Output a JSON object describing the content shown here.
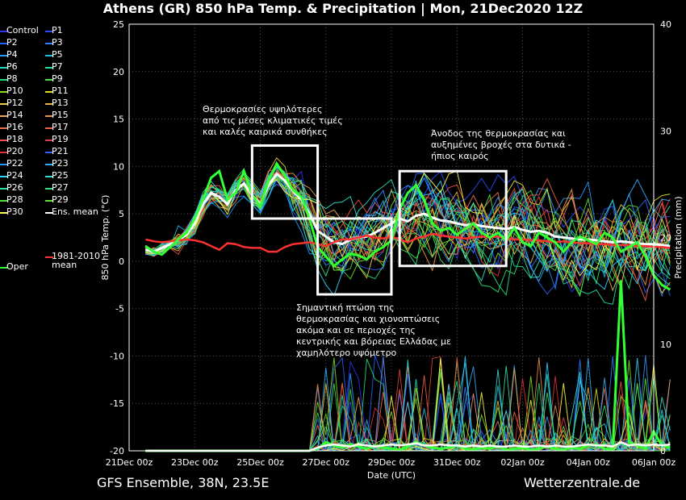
{
  "chart_data": {
    "type": "line",
    "title": "Athens  (GR)  850 hPa Temp. & Precipitation | Mon, 21Dec2020 12Z",
    "xlabel": "Date (UTC)",
    "ylabel": "850 hPa Temp. (°C)",
    "y2label": "Precipitation (mm)",
    "ylim": [
      -20,
      25
    ],
    "y2lim": [
      0,
      40
    ],
    "yticks": [
      "25",
      "20",
      "15",
      "10",
      "5",
      "0",
      "-5",
      "-10",
      "-15",
      "-20"
    ],
    "y2ticks": [
      "40",
      "30",
      "20",
      "10",
      "0"
    ],
    "x_tick_labels": [
      "21Dec 00z",
      "23Dec 00z",
      "25Dec 00z",
      "27Dec 00z",
      "29Dec 00z",
      "31Dec 00z",
      "02Jan 00z",
      "04Jan 00z",
      "06Jan 00z"
    ],
    "x_hours": [
      0,
      6,
      12,
      18,
      24,
      30,
      36,
      42,
      48,
      54,
      60,
      66,
      72,
      78,
      84,
      90,
      96,
      102,
      108,
      114,
      120,
      126,
      132,
      138,
      144,
      150,
      156,
      162,
      168,
      174,
      180,
      186,
      192,
      198,
      204,
      210,
      216,
      222,
      228,
      234,
      240,
      246,
      252,
      258,
      264,
      270,
      276,
      282,
      288,
      294,
      300,
      306,
      312,
      318,
      324,
      330,
      336,
      342,
      348,
      354,
      360,
      366,
      372,
      378,
      384
    ],
    "x_hours_start": 12,
    "series": [
      {
        "name": "Ens. mean",
        "color": "#ffffff",
        "width": 3,
        "values": [
          1.2,
          1.0,
          1.4,
          1.8,
          2.2,
          2.8,
          4.0,
          6.0,
          7.2,
          6.8,
          6.0,
          7.5,
          8.2,
          7.0,
          6.0,
          8.0,
          9.2,
          8.5,
          7.4,
          6.5,
          5.0,
          3.2,
          2.6,
          2.0,
          1.8,
          2.3,
          2.5,
          2.6,
          3.0,
          3.5,
          4.0,
          4.5,
          4.2,
          4.8,
          5.0,
          4.6,
          4.3,
          4.2,
          4.0,
          3.8,
          3.9,
          3.7,
          3.6,
          3.5,
          3.4,
          3.6,
          3.3,
          3.1,
          3.2,
          3.0,
          2.6,
          2.5,
          2.4,
          2.3,
          2.3,
          2.2,
          2.1,
          2.0,
          2.1,
          2.0,
          1.9,
          1.8,
          1.8,
          1.7,
          1.6
        ]
      },
      {
        "name": "1981-2010 mean",
        "color": "#ff3030",
        "width": 2.5,
        "values": [
          2.3,
          2.1,
          2.0,
          2.1,
          2.2,
          2.3,
          2.2,
          2.0,
          1.6,
          1.2,
          1.9,
          1.8,
          1.5,
          1.4,
          1.4,
          1.0,
          1.0,
          1.5,
          1.8,
          1.9,
          2.0,
          1.8,
          1.6,
          2.0,
          2.3,
          2.3,
          2.5,
          2.7,
          2.5,
          2.4,
          2.6,
          2.3,
          2.0,
          2.4,
          2.6,
          2.9,
          2.7,
          2.6,
          2.5,
          2.4,
          2.5,
          2.6,
          2.5,
          2.6,
          2.4,
          2.3,
          2.3,
          2.2,
          2.2,
          2.1,
          2.0,
          2.1,
          2.0,
          1.9,
          1.9,
          1.8,
          1.8,
          1.7,
          1.7,
          1.7,
          1.6,
          1.6,
          1.5,
          1.5,
          1.4
        ]
      },
      {
        "name": "Oper",
        "color": "#33ff33",
        "width": 3,
        "values": [
          1.6,
          1.0,
          0.7,
          1.5,
          2.3,
          3.0,
          4.5,
          6.5,
          8.8,
          9.5,
          6.5,
          7.2,
          9.5,
          7.0,
          5.8,
          8.5,
          10.3,
          9.0,
          7.5,
          6.8,
          4.5,
          1.5,
          0.5,
          -0.5,
          0.2,
          0.8,
          0.6,
          0.2,
          1.0,
          1.5,
          2.2,
          5.5,
          7.2,
          8.0,
          6.5,
          4.0,
          3.2,
          3.5,
          2.8,
          3.4,
          4.0,
          3.0,
          2.5,
          3.0,
          2.2,
          3.5,
          2.0,
          1.6,
          3.0,
          2.5,
          2.0,
          1.0,
          2.0,
          2.6,
          2.2,
          1.8,
          3.0,
          2.5,
          1.0,
          1.5,
          2.0,
          0.5,
          -1.5,
          -2.5,
          -3.0
        ]
      }
    ],
    "precip_series": [
      {
        "name": "Oper",
        "color": "#33ff33",
        "values": [
          0,
          0,
          0,
          0,
          0,
          0,
          0,
          0,
          0,
          0,
          0,
          0,
          0,
          0,
          0,
          0,
          0,
          0,
          0,
          0,
          0,
          0.2,
          0.8,
          0.5,
          0.3,
          0.6,
          0.4,
          0.2,
          0.5,
          0.3,
          0.2,
          0.1,
          0.4,
          0.8,
          0.5,
          0.3,
          0.2,
          0.3,
          0.5,
          0.2,
          0.1,
          0.3,
          0.2,
          0.4,
          0.1,
          0.2,
          0.3,
          0.1,
          0.2,
          0.4,
          0.2,
          0.1,
          0.3,
          0.2,
          0.5,
          0.6,
          0.2,
          0.1,
          16,
          0.8,
          0.5,
          0.2,
          1.8,
          0.5,
          0.3
        ]
      },
      {
        "name": "Ens. mean",
        "color": "#ffffff",
        "values": [
          0,
          0,
          0,
          0,
          0,
          0,
          0,
          0,
          0,
          0,
          0,
          0,
          0,
          0,
          0,
          0,
          0,
          0,
          0,
          0,
          0,
          0.3,
          0.5,
          0.6,
          0.5,
          0.4,
          0.6,
          0.5,
          0.4,
          0.5,
          0.6,
          0.5,
          0.6,
          0.7,
          0.5,
          0.5,
          0.6,
          0.5,
          0.5,
          0.4,
          0.5,
          0.4,
          0.5,
          0.4,
          0.4,
          0.5,
          0.4,
          0.4,
          0.5,
          0.4,
          0.5,
          0.4,
          0.4,
          0.5,
          0.6,
          0.5,
          0.5,
          0.4,
          0.8,
          0.5,
          0.6,
          0.5,
          0.6,
          0.5,
          0.6
        ]
      }
    ],
    "legend_items": [
      {
        "label": "Control",
        "color": "#3030ff"
      },
      {
        "label": "P1",
        "color": "#2a4cff"
      },
      {
        "label": "P2",
        "color": "#2060ff"
      },
      {
        "label": "P3",
        "color": "#2c7fff"
      },
      {
        "label": "P4",
        "color": "#1f9fff"
      },
      {
        "label": "P5",
        "color": "#20c0e0"
      },
      {
        "label": "P6",
        "color": "#20e0c0"
      },
      {
        "label": "P7",
        "color": "#20e0a0"
      },
      {
        "label": "P8",
        "color": "#20e080"
      },
      {
        "label": "P9",
        "color": "#40e040"
      },
      {
        "label": "P10",
        "color": "#80e020"
      },
      {
        "label": "P11",
        "color": "#e0e020"
      },
      {
        "label": "P12",
        "color": "#f0d040"
      },
      {
        "label": "P13",
        "color": "#f0b040"
      },
      {
        "label": "P14",
        "color": "#f0a050"
      },
      {
        "label": "P15",
        "color": "#f09040"
      },
      {
        "label": "P16",
        "color": "#f07050"
      },
      {
        "label": "P17",
        "color": "#f06040"
      },
      {
        "label": "P18",
        "color": "#f05040"
      },
      {
        "label": "P19",
        "color": "#e04040"
      },
      {
        "label": "P20",
        "color": "#e03030"
      },
      {
        "label": "P21",
        "color": "#3060ff"
      },
      {
        "label": "P22",
        "color": "#3090ff"
      },
      {
        "label": "P23",
        "color": "#30b0ff"
      },
      {
        "label": "P24",
        "color": "#30d0ff"
      },
      {
        "label": "P25",
        "color": "#30e0d0"
      },
      {
        "label": "P26",
        "color": "#30e0a0"
      },
      {
        "label": "P27",
        "color": "#30e070"
      },
      {
        "label": "P28",
        "color": "#50e040"
      },
      {
        "label": "P29",
        "color": "#60e030"
      },
      {
        "label": "P30",
        "color": "#ffff40"
      },
      {
        "label": "Ens. mean",
        "color": "#ffffff"
      },
      {
        "label": "Oper",
        "color": "#33ff33"
      },
      {
        "label": "1981-2010\nmean",
        "color": "#ff3030"
      }
    ],
    "annotations": [
      {
        "text": "Θερμοκρασίες υψηλότερες\nαπό τις μέσες κλιματικές τιμές\nκαι καλές καιρικά συνθήκες"
      },
      {
        "text": "Σημαντική πτώση της\nθερμοκρασίας και χιονοπτώσεις\nακόμα και σε περιοχές της\nκεντρικής και βόρειας Ελλάδας με\nχαμηλότερο υψόμετρο"
      },
      {
        "text": "Άνοδος της θερμοκρασίας και\nαυξημένες βροχές στα δυτικά -\nήπιος καιρός"
      }
    ],
    "highlight_boxes": [
      {
        "x_hours": [
          90,
          138
        ],
        "y": [
          4.5,
          12.2
        ]
      },
      {
        "x_hours": [
          138,
          192
        ],
        "y": [
          -3.5,
          4.5
        ]
      },
      {
        "x_hours": [
          198,
          276
        ],
        "y": [
          -0.5,
          9.5
        ]
      }
    ],
    "grid": true,
    "legend_position": "left"
  },
  "footer": {
    "model": "GFS Ensemble, 38N, 23.5E",
    "site": "Wetterzentrale.de"
  }
}
